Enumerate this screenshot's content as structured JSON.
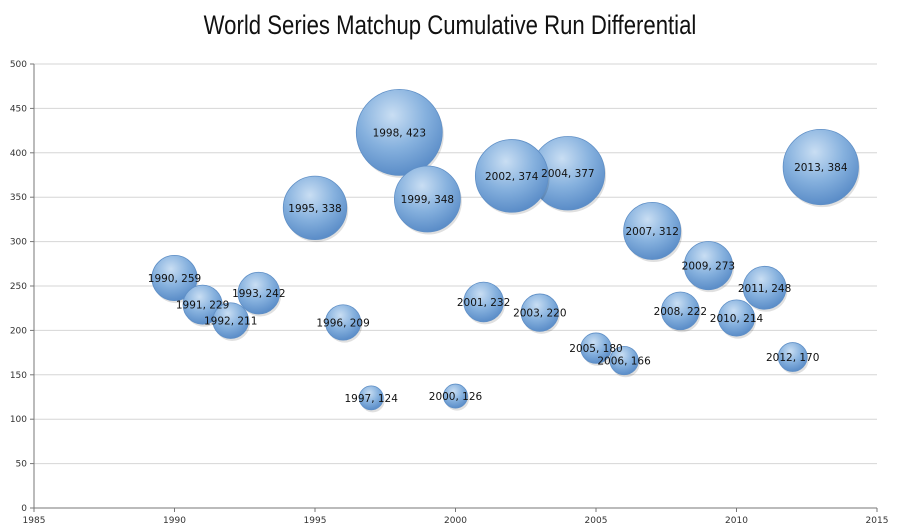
{
  "chart_data": {
    "type": "bubble",
    "title": "World Series Matchup Cumulative Run Differential",
    "xlim": [
      1985,
      2015
    ],
    "ylim": [
      0,
      500
    ],
    "x_ticks": [
      1985,
      1990,
      1995,
      2000,
      2005,
      2010,
      2015
    ],
    "y_ticks": [
      0,
      50,
      100,
      150,
      200,
      250,
      300,
      350,
      400,
      450,
      500
    ],
    "grid": true,
    "bubble_color": "#6f9fd3",
    "points": [
      {
        "x": 1990,
        "y": 259,
        "label": "1990, 259"
      },
      {
        "x": 1991,
        "y": 229,
        "label": "1991, 229"
      },
      {
        "x": 1992,
        "y": 211,
        "label": "1992, 211"
      },
      {
        "x": 1993,
        "y": 242,
        "label": "1993, 242"
      },
      {
        "x": 1995,
        "y": 338,
        "label": "1995, 338"
      },
      {
        "x": 1996,
        "y": 209,
        "label": "1996, 209"
      },
      {
        "x": 1997,
        "y": 124,
        "label": "1997, 124"
      },
      {
        "x": 1998,
        "y": 423,
        "label": "1998, 423"
      },
      {
        "x": 1999,
        "y": 348,
        "label": "1999, 348"
      },
      {
        "x": 2000,
        "y": 126,
        "label": "2000, 126"
      },
      {
        "x": 2001,
        "y": 232,
        "label": "2001, 232"
      },
      {
        "x": 2002,
        "y": 374,
        "label": "2002, 374"
      },
      {
        "x": 2003,
        "y": 220,
        "label": "2003, 220"
      },
      {
        "x": 2004,
        "y": 377,
        "label": "2004, 377"
      },
      {
        "x": 2005,
        "y": 180,
        "label": "2005, 180"
      },
      {
        "x": 2006,
        "y": 166,
        "label": "2006, 166"
      },
      {
        "x": 2007,
        "y": 312,
        "label": "2007, 312"
      },
      {
        "x": 2008,
        "y": 222,
        "label": "2008, 222"
      },
      {
        "x": 2009,
        "y": 273,
        "label": "2009, 273"
      },
      {
        "x": 2010,
        "y": 214,
        "label": "2010, 214"
      },
      {
        "x": 2011,
        "y": 248,
        "label": "2011, 248"
      },
      {
        "x": 2012,
        "y": 170,
        "label": "2012, 170"
      },
      {
        "x": 2013,
        "y": 384,
        "label": "2013, 384"
      }
    ]
  }
}
